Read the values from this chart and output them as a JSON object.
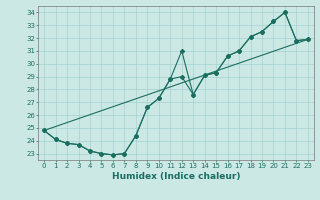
{
  "xlabel": "Humidex (Indice chaleur)",
  "ylabel": "",
  "bg_color": "#cce8e4",
  "line_color": "#1a6e60",
  "xlim": [
    -0.5,
    23.5
  ],
  "ylim": [
    22.5,
    34.5
  ],
  "yticks": [
    23,
    24,
    25,
    26,
    27,
    28,
    29,
    30,
    31,
    32,
    33,
    34
  ],
  "xticks": [
    0,
    1,
    2,
    3,
    4,
    5,
    6,
    7,
    8,
    9,
    10,
    11,
    12,
    13,
    14,
    15,
    16,
    17,
    18,
    19,
    20,
    21,
    22,
    23
  ],
  "series1_x": [
    0,
    1,
    2,
    3,
    4,
    5,
    6,
    7,
    8,
    9,
    10,
    11,
    12,
    13,
    14,
    15,
    16,
    17,
    18,
    19,
    20,
    21,
    22,
    23
  ],
  "series1_y": [
    24.8,
    24.1,
    23.8,
    23.7,
    23.2,
    23.0,
    22.9,
    23.0,
    24.4,
    26.6,
    27.3,
    28.8,
    29.0,
    27.6,
    29.1,
    29.3,
    30.6,
    31.0,
    32.1,
    32.5,
    33.3,
    34.0,
    31.8,
    31.9
  ],
  "series2_x": [
    0,
    1,
    2,
    3,
    4,
    5,
    6,
    7,
    8,
    9,
    10,
    11,
    12,
    13,
    14,
    15,
    16,
    17,
    18,
    19,
    20,
    21,
    22,
    23
  ],
  "series2_y": [
    24.8,
    24.1,
    23.8,
    23.7,
    23.2,
    23.0,
    22.9,
    23.0,
    24.4,
    26.6,
    27.3,
    28.8,
    31.0,
    27.6,
    29.1,
    29.3,
    30.6,
    31.0,
    32.1,
    32.5,
    33.3,
    34.0,
    31.8,
    31.9
  ],
  "trend_x": [
    0,
    23
  ],
  "trend_y": [
    24.8,
    31.9
  ]
}
